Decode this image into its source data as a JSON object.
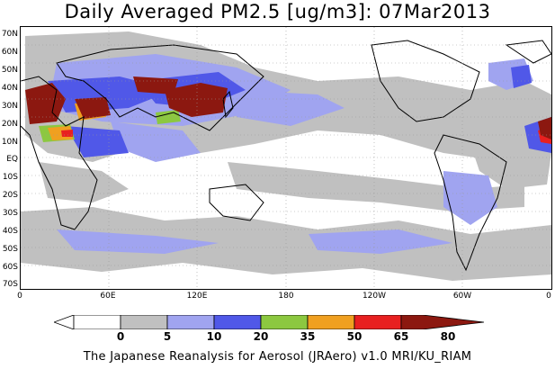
{
  "title": "Daily Averaged PM2.5 [ug/m3]: 07Mar2013",
  "footer": "The Japanese Reanalysis for Aerosol (JRAero) v1.0 MRI/KU_RIAM",
  "map": {
    "latitude_labels": [
      "70N",
      "60N",
      "50N",
      "40N",
      "30N",
      "20N",
      "10N",
      "EQ",
      "10S",
      "20S",
      "30S",
      "40S",
      "50S",
      "60S",
      "70S"
    ],
    "longitude_labels": [
      "0",
      "60E",
      "120E",
      "180",
      "120W",
      "60W",
      "0"
    ],
    "latitude_range": [
      -75,
      75
    ],
    "longitude_range": [
      0,
      360
    ],
    "gridlines": true
  },
  "colorbar": {
    "levels": [
      "0",
      "5",
      "10",
      "20",
      "35",
      "50",
      "65",
      "80"
    ],
    "colors": [
      "#ffffff",
      "#c0c0c0",
      "#a0a4f0",
      "#5058e8",
      "#8cc840",
      "#f0a020",
      "#e82020",
      "#8c1810"
    ]
  }
}
